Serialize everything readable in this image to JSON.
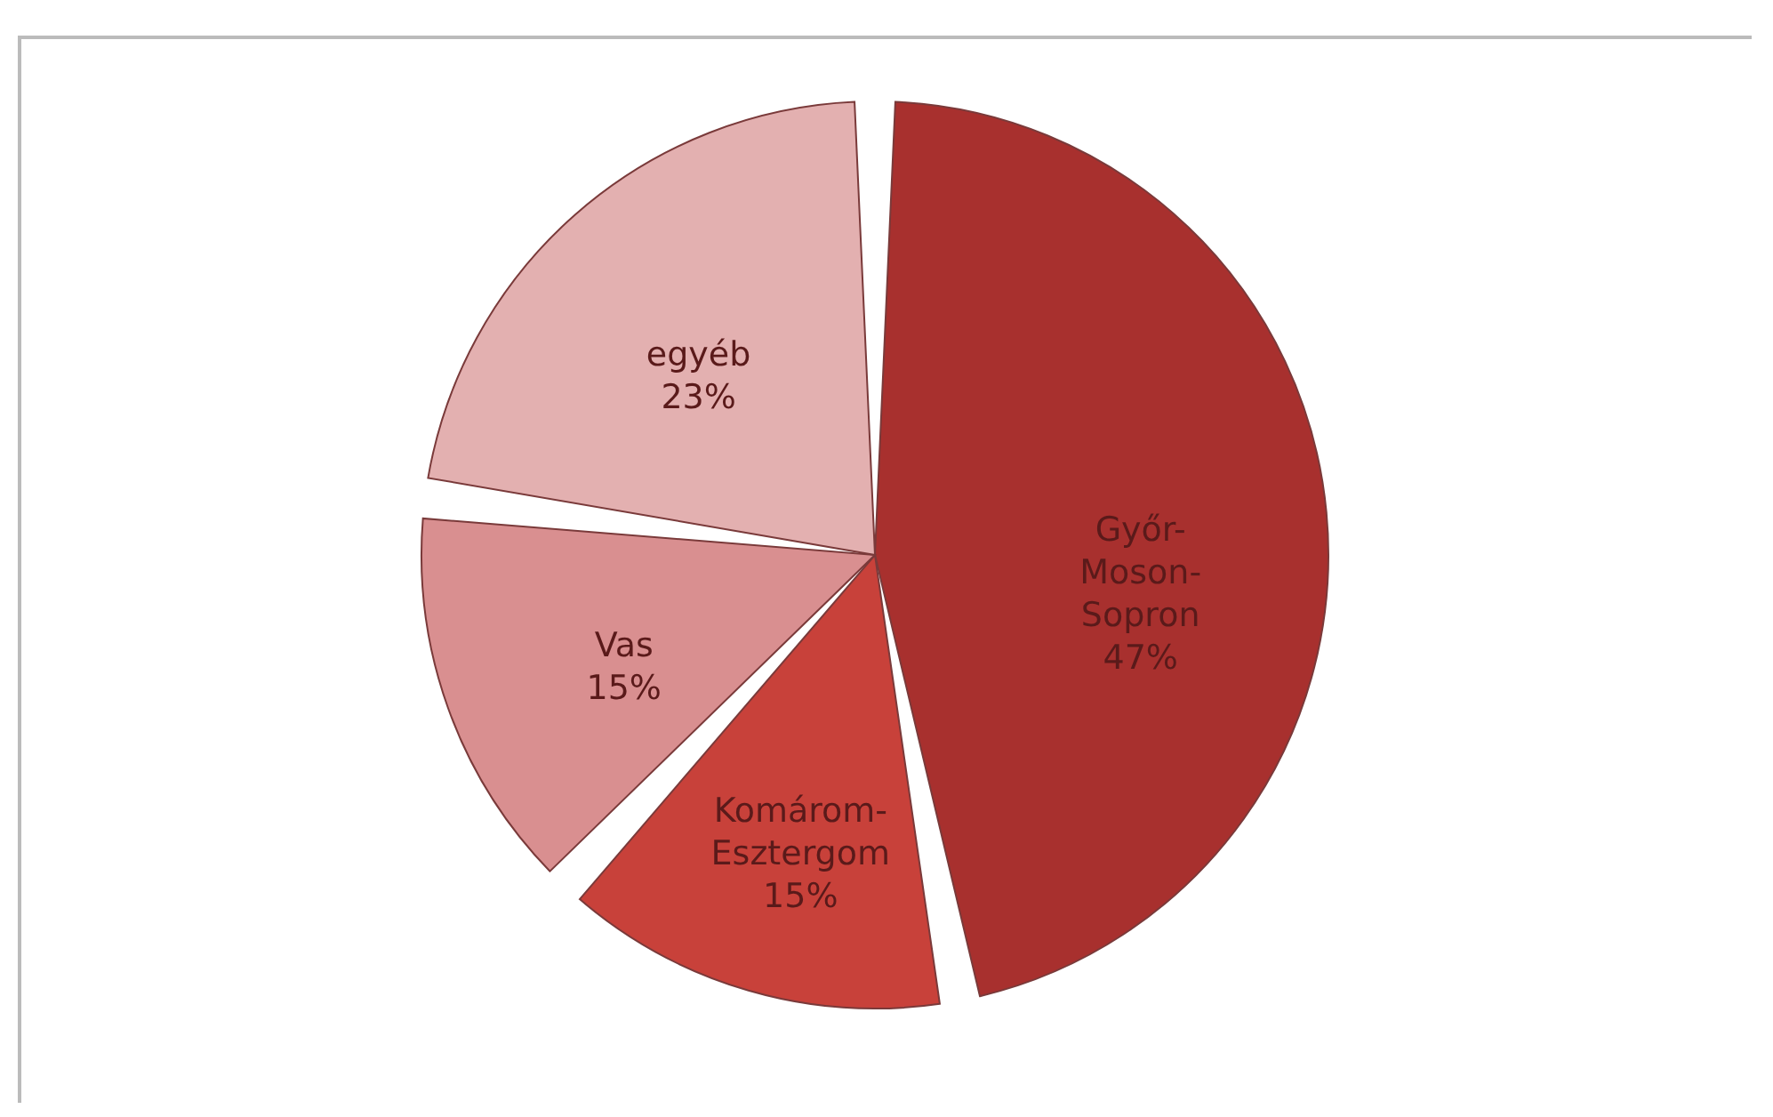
{
  "chart_data": {
    "type": "pie",
    "categories": [
      "Győr-Moson-Sopron",
      "Komárom-Esztergom",
      "Vas",
      "egyéb"
    ],
    "values": [
      47,
      15,
      15,
      23
    ],
    "value_labels": [
      "47%",
      "15%",
      "15%",
      "23%"
    ],
    "colors": [
      "#a8302e",
      "#c8413a",
      "#d98f90",
      "#e3b0b0"
    ]
  }
}
